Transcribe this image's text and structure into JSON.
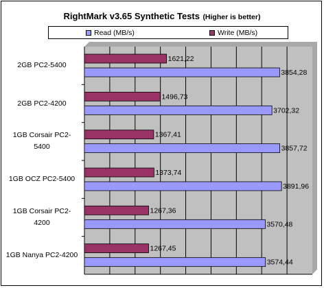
{
  "chart_data": {
    "type": "bar",
    "orientation": "horizontal",
    "title": "RightMark v3.65 Synthetic Tests",
    "subtitle": "(Higher is better)",
    "categories": [
      "2GB PC2-5400",
      "2GB PC2-4200",
      "1GB Corsair PC2-5400",
      "1GB OCZ PC2-5400",
      "1GB Corsair PC2-4200",
      "1GB Nanya PC2-4200"
    ],
    "series": [
      {
        "name": "Read (MB/s)",
        "values": [
          3854.28,
          3702.32,
          3857.72,
          3891.96,
          3570.48,
          3574.44
        ],
        "labels": [
          "3854,28",
          "3702,32",
          "3857,72",
          "3891,96",
          "3570,48",
          "3574,44"
        ],
        "color": "#9999FF"
      },
      {
        "name": "Write (MB/s)",
        "values": [
          1621.22,
          1496.73,
          1367.41,
          1373.74,
          1267.36,
          1267.45
        ],
        "labels": [
          "1621,22",
          "1496,73",
          "1367,41",
          "1373,74",
          "1267,36",
          "1267,45"
        ],
        "color": "#993366"
      }
    ],
    "xlim": [
      0,
      4500
    ],
    "grid": true,
    "legend": "top",
    "plot_background": "#C0C0C0"
  },
  "category_labels": [
    [
      "2GB PC2-5400"
    ],
    [
      "2GB PC2-4200"
    ],
    [
      "1GB Corsair PC2-",
      "5400"
    ],
    [
      "1GB OCZ PC2-5400"
    ],
    [
      "1GB Corsair PC2-",
      "4200"
    ],
    [
      "1GB Nanya PC2-4200"
    ]
  ]
}
